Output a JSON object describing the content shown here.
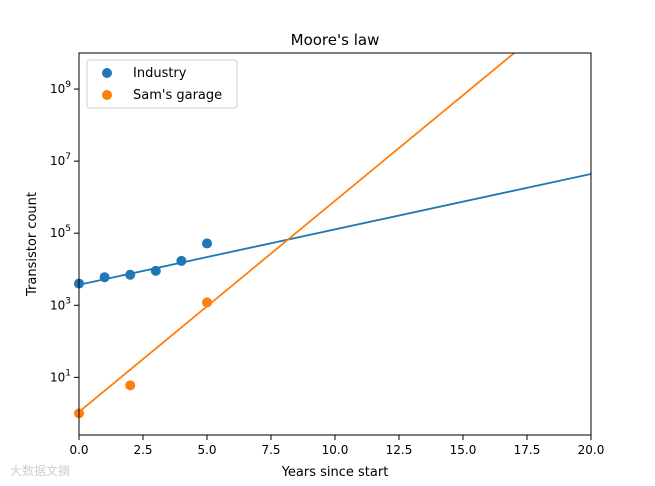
{
  "chart_data": {
    "type": "scatter",
    "title": "Moore's law",
    "xlabel": "Years since start",
    "ylabel": "Transistor count",
    "xlim": [
      0,
      20
    ],
    "ylim_log10": [
      -0.6,
      10
    ],
    "yscale": "log",
    "x_ticks": [
      "0.0",
      "2.5",
      "5.0",
      "7.5",
      "10.0",
      "12.5",
      "15.0",
      "17.5",
      "20.0"
    ],
    "x_tick_values": [
      0,
      2.5,
      5,
      7.5,
      10,
      12.5,
      15,
      17.5,
      20
    ],
    "y_tick_exponents": [
      "1",
      "3",
      "5",
      "7",
      "9"
    ],
    "y_tick_base": "10",
    "grid": false,
    "legend": "top-left",
    "series": [
      {
        "name": "Industry",
        "color": "#1f77b4",
        "points": [
          [
            0,
            4000
          ],
          [
            1,
            6000
          ],
          [
            2,
            7000
          ],
          [
            3,
            9000
          ],
          [
            4,
            17000
          ],
          [
            5,
            52000
          ]
        ],
        "fit_line": [
          [
            0,
            3700
          ],
          [
            20,
            4400000
          ]
        ]
      },
      {
        "name": "Sam's garage",
        "color": "#ff7f0e",
        "points": [
          [
            0,
            1
          ],
          [
            2,
            6
          ],
          [
            5,
            1200
          ]
        ],
        "fit_line": [
          [
            0,
            1.1
          ],
          [
            17,
            10000000000
          ]
        ]
      }
    ]
  },
  "watermark": "大数据文摘"
}
